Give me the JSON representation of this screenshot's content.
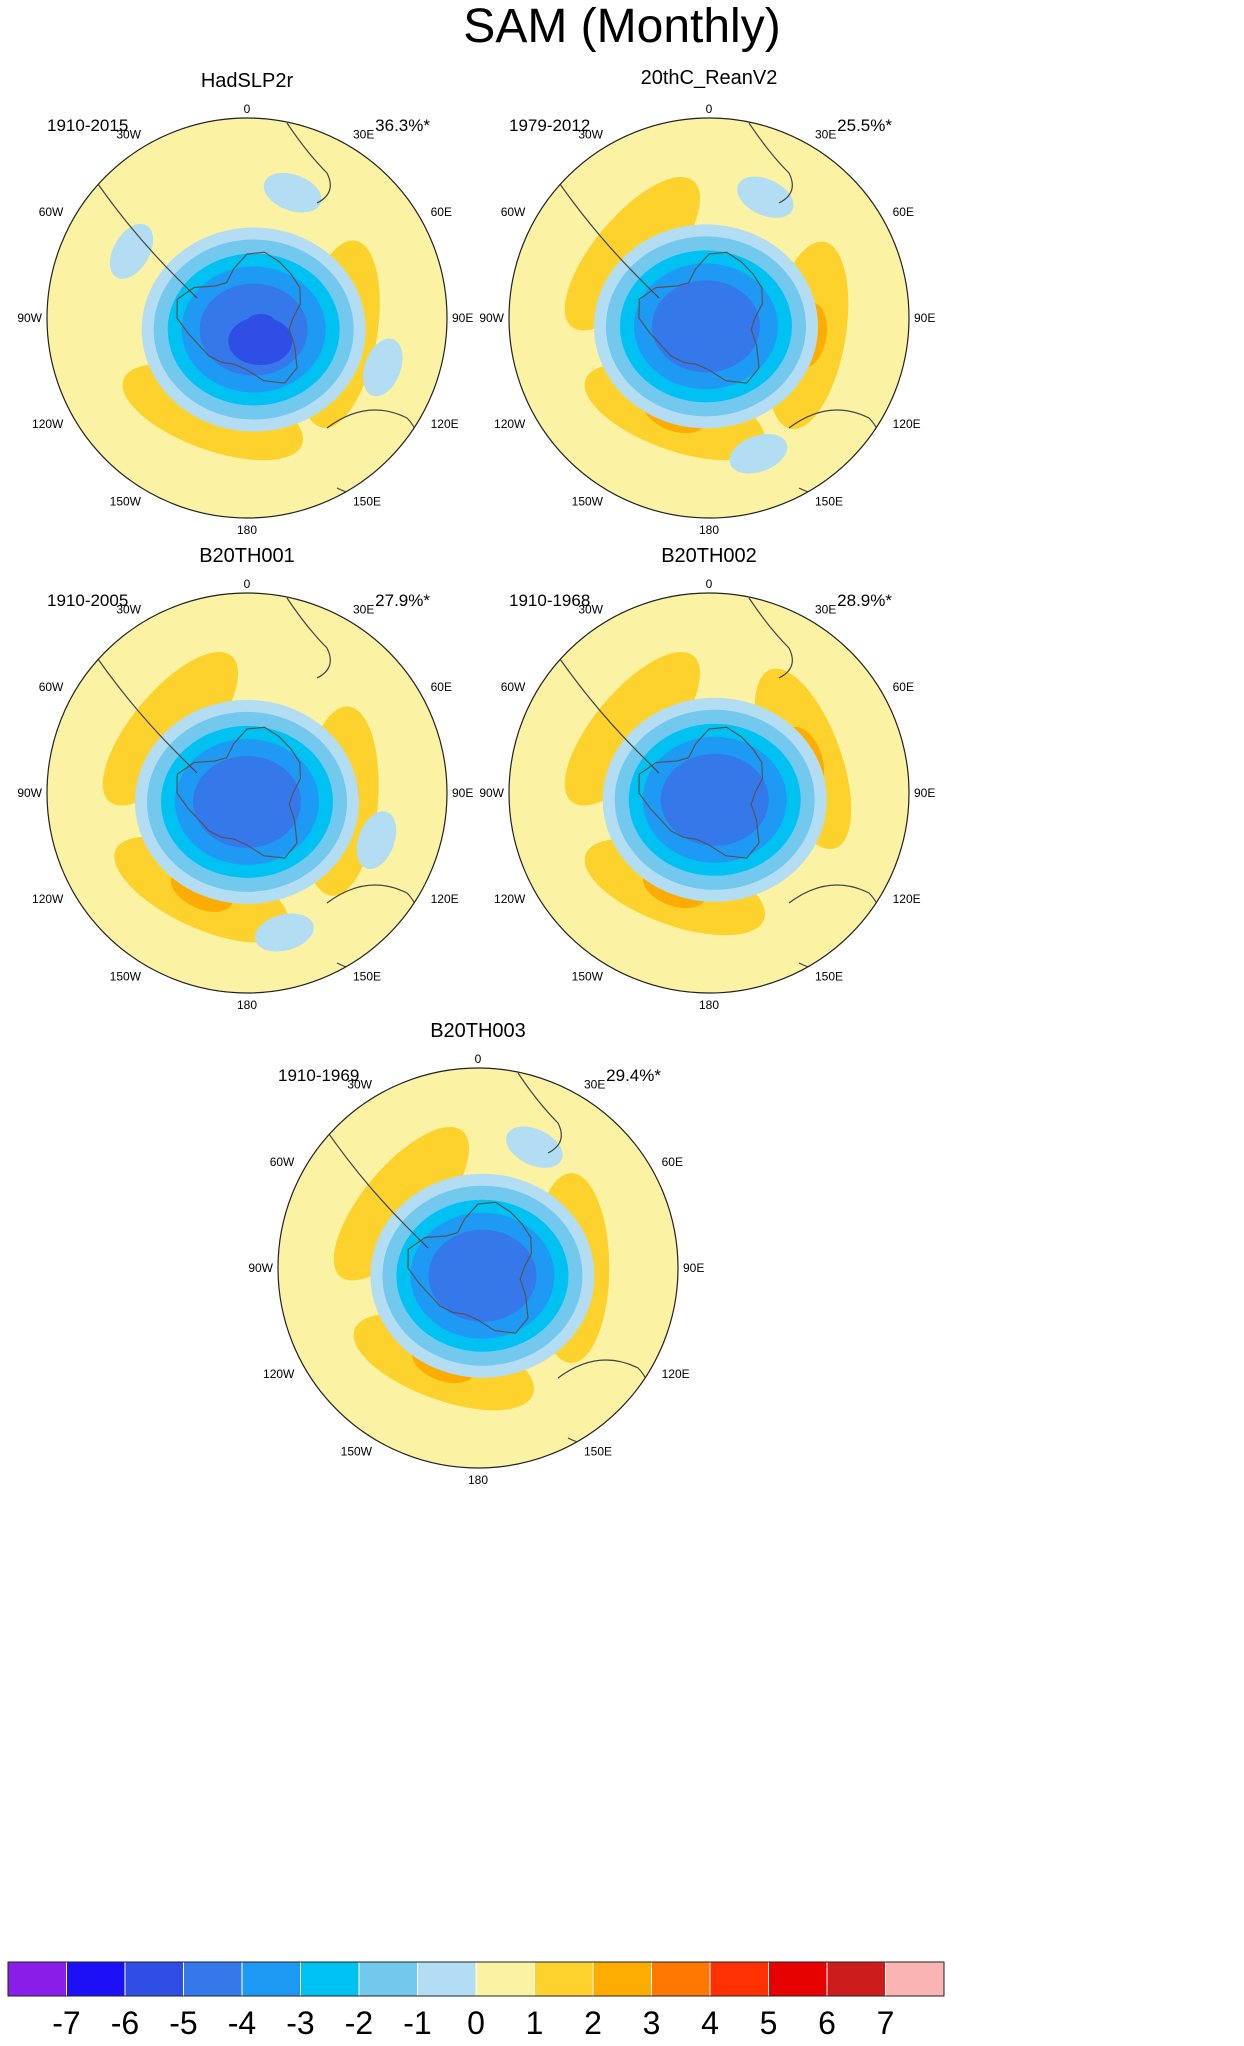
{
  "title": "SAM (Monthly)",
  "chart_data": {
    "type": "polar-stereographic-contour-map",
    "title": "SAM (Monthly)",
    "variable_note": "Southern Annular Mode regression patterns, Southern Hemisphere polar view",
    "panels": [
      {
        "name": "HadSLP2r",
        "years": "1910-2015",
        "variance": "36.3%*",
        "lobes": [
          {
            "lon": 150,
            "lat": -78,
            "value": -6
          },
          {
            "lon": 225,
            "lat": -82,
            "value": -5
          },
          {
            "lon": 100,
            "lat": -48,
            "value": 1
          },
          {
            "lon": 200,
            "lat": -45,
            "value": 1
          },
          {
            "lon": 20,
            "lat": -30,
            "value": -1
          },
          {
            "lon": 110,
            "lat": -25,
            "value": -1
          },
          {
            "lon": 300,
            "lat": -30,
            "value": -1
          }
        ]
      },
      {
        "name": "20thC_ReanV2",
        "years": "1979-2012",
        "variance": "25.5%*",
        "lobes": [
          {
            "lon": 200,
            "lat": -82,
            "value": -5
          },
          {
            "lon": 310,
            "lat": -45,
            "value": 1
          },
          {
            "lon": 100,
            "lat": -45,
            "value": 2
          },
          {
            "lon": 200,
            "lat": -45,
            "value": 2
          },
          {
            "lon": 25,
            "lat": -30,
            "value": -1
          },
          {
            "lon": 160,
            "lat": -25,
            "value": -1
          }
        ]
      },
      {
        "name": "B20TH001",
        "years": "1910-2005",
        "variance": "27.9%*",
        "lobes": [
          {
            "lon": 180,
            "lat": -82,
            "value": -5
          },
          {
            "lon": 310,
            "lat": -45,
            "value": 1
          },
          {
            "lon": 95,
            "lat": -48,
            "value": 2
          },
          {
            "lon": 205,
            "lat": -42,
            "value": 2
          },
          {
            "lon": 110,
            "lat": -28,
            "value": -1
          },
          {
            "lon": 165,
            "lat": -25,
            "value": -1
          }
        ]
      },
      {
        "name": "B20TH002",
        "years": "1910-1968",
        "variance": "28.9%*",
        "lobes": [
          {
            "lon": 140,
            "lat": -82,
            "value": -5
          },
          {
            "lon": 310,
            "lat": -45,
            "value": 1
          },
          {
            "lon": 70,
            "lat": -45,
            "value": 2
          },
          {
            "lon": 200,
            "lat": -45,
            "value": 2
          }
        ]
      },
      {
        "name": "B20TH003",
        "years": "1910-1969",
        "variance": "29.4%*",
        "lobes": [
          {
            "lon": 150,
            "lat": -82,
            "value": -5
          },
          {
            "lon": 310,
            "lat": -45,
            "value": 1
          },
          {
            "lon": 90,
            "lat": -48,
            "value": 2
          },
          {
            "lon": 200,
            "lat": -45,
            "value": 2
          },
          {
            "lon": 25,
            "lat": -30,
            "value": -1
          }
        ]
      }
    ],
    "meridian_labels": [
      "0",
      "30E",
      "60E",
      "90E",
      "120E",
      "150E",
      "180",
      "150W",
      "120W",
      "90W",
      "60W",
      "30W"
    ],
    "colorbar": {
      "labels": [
        "-7",
        "-6",
        "-5",
        "-4",
        "-3",
        "-2",
        "-1",
        "0",
        "1",
        "2",
        "3",
        "4",
        "5",
        "6",
        "7"
      ],
      "colors": [
        "#8a1ee8",
        "#1e10f5",
        "#2e4ee6",
        "#3478ea",
        "#1e9af5",
        "#00c2f2",
        "#73c8ee",
        "#b2ddf2",
        "#fbf3a3",
        "#fed22c",
        "#fdac02",
        "#fe7802",
        "#fe3102",
        "#e70202",
        "#cc1c1c",
        "#fbb4b4"
      ]
    }
  }
}
